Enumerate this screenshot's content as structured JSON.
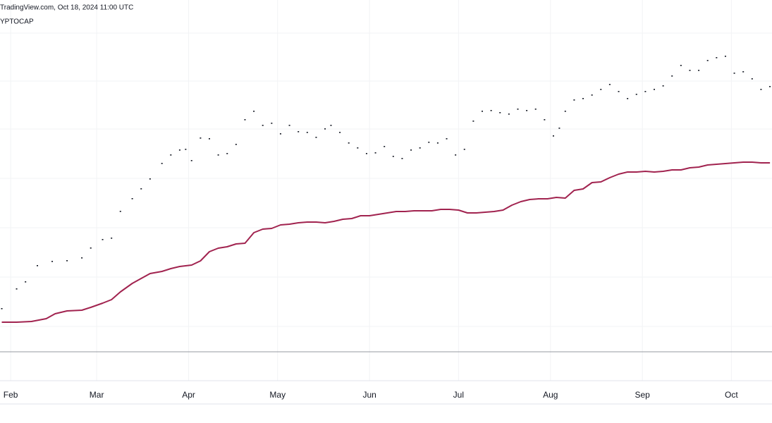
{
  "header": {
    "source": "TradingView.com, Oct 18, 2024 11:00 UTC",
    "symbol": "YPTOCAP"
  },
  "chart_data": {
    "type": "line",
    "xlim": [
      27.4,
      287.7
    ],
    "xticks": [
      {
        "value": 31,
        "label": "Feb"
      },
      {
        "value": 60,
        "label": "Mar"
      },
      {
        "value": 91,
        "label": "Apr"
      },
      {
        "value": 121,
        "label": "May"
      },
      {
        "value": 152,
        "label": "Jun"
      },
      {
        "value": 182,
        "label": "Jul"
      },
      {
        "value": 213,
        "label": "Aug"
      },
      {
        "value": 244,
        "label": "Sep"
      },
      {
        "value": 274,
        "label": "Oct"
      }
    ],
    "ylim": [
      0,
      540
    ],
    "grid": true,
    "series": [
      {
        "style": "dots",
        "color": "#131722",
        "x": [
          28,
          33,
          36,
          40,
          45,
          50,
          55,
          58,
          62,
          65,
          68,
          72,
          75,
          78,
          82,
          85,
          88,
          90,
          92,
          95,
          98,
          101,
          104,
          107,
          110,
          113,
          116,
          119,
          122,
          125,
          128,
          131,
          134,
          137,
          139,
          142,
          145,
          148,
          151,
          154,
          157,
          160,
          163,
          166,
          169,
          172,
          175,
          178,
          181,
          184,
          187,
          190,
          193,
          196,
          199,
          202,
          205,
          208,
          211,
          214,
          216,
          218,
          221,
          224,
          227,
          230,
          233,
          236,
          239,
          242,
          245,
          248,
          251,
          254,
          257,
          260,
          263,
          266,
          269,
          272,
          275,
          278,
          281,
          284,
          287
        ],
        "values": [
          102,
          130,
          140,
          163,
          169,
          170,
          174,
          188,
          200,
          202,
          240,
          258,
          272,
          286,
          308,
          320,
          327,
          328,
          312,
          344,
          343,
          320,
          322,
          335,
          370,
          382,
          362,
          365,
          350,
          362,
          353,
          352,
          345,
          357,
          362,
          352,
          337,
          330,
          322,
          323,
          332,
          318,
          315,
          327,
          330,
          338,
          337,
          343,
          320,
          328,
          368,
          382,
          383,
          380,
          378,
          385,
          383,
          385,
          370,
          347,
          358,
          382,
          398,
          400,
          405,
          413,
          420,
          410,
          400,
          406,
          410,
          413,
          418,
          432,
          447,
          440,
          440,
          454,
          458,
          460,
          436,
          438,
          428,
          413,
          417
        ]
      },
      {
        "style": "line",
        "color": "#a1234f",
        "x": [
          28,
          33,
          38,
          43,
          46,
          50,
          55,
          58,
          62,
          65,
          68,
          72,
          75,
          78,
          82,
          85,
          88,
          90,
          92,
          95,
          98,
          101,
          104,
          107,
          110,
          113,
          116,
          119,
          122,
          125,
          128,
          131,
          134,
          137,
          140,
          143,
          146,
          149,
          152,
          155,
          158,
          161,
          164,
          167,
          170,
          173,
          176,
          179,
          182,
          185,
          188,
          191,
          194,
          197,
          200,
          203,
          206,
          209,
          212,
          215,
          218,
          221,
          224,
          227,
          230,
          233,
          236,
          239,
          242,
          245,
          248,
          251,
          254,
          257,
          260,
          263,
          266,
          269,
          272,
          275,
          278,
          281,
          284,
          287
        ],
        "values": [
          83,
          83,
          84,
          88,
          95,
          99,
          100,
          104,
          110,
          115,
          126,
          138,
          145,
          152,
          155,
          159,
          162,
          163,
          164,
          170,
          183,
          188,
          190,
          194,
          195,
          210,
          215,
          216,
          221,
          222,
          224,
          225,
          225,
          224,
          226,
          229,
          230,
          234,
          234,
          236,
          238,
          240,
          240,
          241,
          241,
          241,
          243,
          243,
          242,
          238,
          238,
          239,
          240,
          242,
          249,
          254,
          257,
          258,
          258,
          260,
          259,
          270,
          272,
          281,
          282,
          288,
          293,
          296,
          296,
          297,
          296,
          297,
          299,
          299,
          302,
          303,
          306,
          307,
          308,
          309,
          310,
          310,
          309,
          309
        ]
      }
    ]
  }
}
